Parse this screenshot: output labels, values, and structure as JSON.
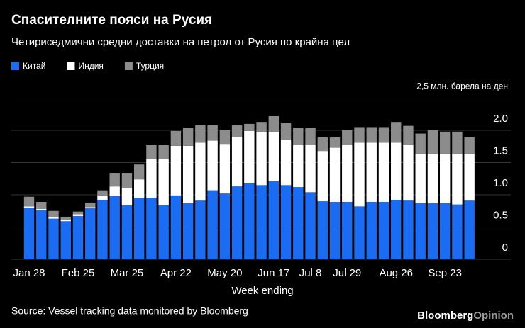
{
  "chart_data": {
    "type": "stacked-bar",
    "title": "Спасителните пояси на Русия",
    "subtitle": "Четириседмични средни доставки на петрол от Русия по крайна цел",
    "x_label": "Week ending",
    "source": "Source: Vessel tracking data monitored by Bloomberg",
    "logo": {
      "brand": "Bloomberg",
      "section": "Opinion"
    },
    "legend_position": "top-left",
    "grid": true,
    "categories": [
      "Jan 28",
      null,
      null,
      null,
      "Feb 25",
      null,
      null,
      null,
      "Mar 25",
      null,
      null,
      null,
      "Apr 22",
      null,
      null,
      null,
      "May 20",
      null,
      null,
      null,
      "Jun 17",
      null,
      null,
      "Jul 8",
      null,
      null,
      "Jul 29",
      null,
      null,
      null,
      "Aug 26",
      null,
      null,
      null,
      "Sep 23",
      null,
      null
    ],
    "ylim": [
      0,
      2.5
    ],
    "yticks": [
      0,
      0.5,
      {
        "value": 1,
        "label": "1.0"
      },
      1.5,
      {
        "value": 2,
        "label": "2.0"
      },
      {
        "value": 2.5,
        "label": "2,5 млн. барела на ден"
      }
    ],
    "series": [
      {
        "name": "Китай",
        "color": "#1a6cf2",
        "values": [
          0.8,
          0.76,
          0.63,
          0.59,
          0.67,
          0.79,
          0.92,
          0.98,
          0.84,
          0.95,
          0.95,
          0.84,
          0.99,
          0.87,
          0.91,
          1.07,
          1.02,
          1.13,
          1.18,
          1.15,
          1.21,
          1.15,
          1.12,
          1.04,
          0.9,
          0.89,
          0.89,
          0.82,
          0.89,
          0.89,
          0.92,
          0.91,
          0.87,
          0.87,
          0.87,
          0.85,
          0.91
        ]
      },
      {
        "name": "Индия",
        "color": "#ffffff",
        "values": [
          0.02,
          0.02,
          0.02,
          0.02,
          0.03,
          0.02,
          0.07,
          0.15,
          0.27,
          0.29,
          0.6,
          0.71,
          0.77,
          0.89,
          0.9,
          0.77,
          0.77,
          0.77,
          0.81,
          0.83,
          0.77,
          0.71,
          0.65,
          0.73,
          0.78,
          0.84,
          0.88,
          0.99,
          0.92,
          0.92,
          0.89,
          0.86,
          0.77,
          0.77,
          0.77,
          0.79,
          0.73
        ]
      },
      {
        "name": "Турция",
        "color": "#8c8c8c",
        "values": [
          0.15,
          0.11,
          0.1,
          0.05,
          0.04,
          0.07,
          0.08,
          0.21,
          0.23,
          0.23,
          0.22,
          0.22,
          0.23,
          0.28,
          0.27,
          0.24,
          0.22,
          0.18,
          0.11,
          0.15,
          0.24,
          0.26,
          0.27,
          0.27,
          0.21,
          0.16,
          0.24,
          0.24,
          0.24,
          0.24,
          0.32,
          0.3,
          0.31,
          0.36,
          0.34,
          0.34,
          0.26
        ]
      }
    ]
  }
}
